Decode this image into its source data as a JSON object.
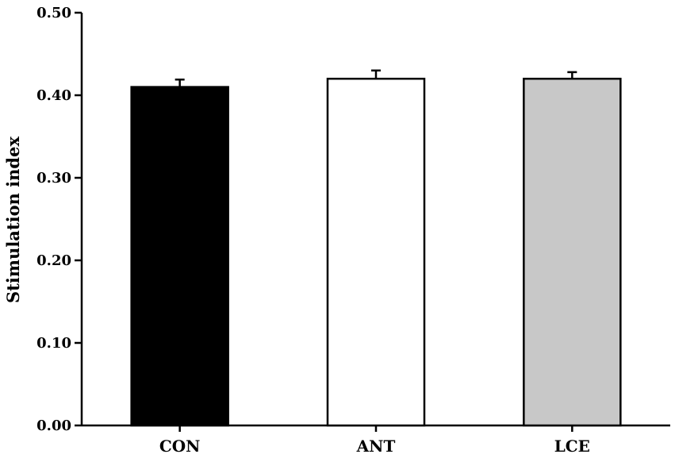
{
  "chart_data": {
    "type": "bar",
    "categories": [
      "CON",
      "ANT",
      "LCE"
    ],
    "values": [
      0.41,
      0.42,
      0.42
    ],
    "errors": [
      0.009,
      0.01,
      0.008
    ],
    "colors": [
      "#000000",
      "#ffffff",
      "#c8c8c8"
    ],
    "title": "",
    "xlabel": "",
    "ylabel": "Stimulation index",
    "ylim": [
      0,
      0.5
    ],
    "yticks": [
      "0.00",
      "0.10",
      "0.20",
      "0.30",
      "0.40",
      "0.50"
    ],
    "grid": false,
    "legend": "none"
  }
}
